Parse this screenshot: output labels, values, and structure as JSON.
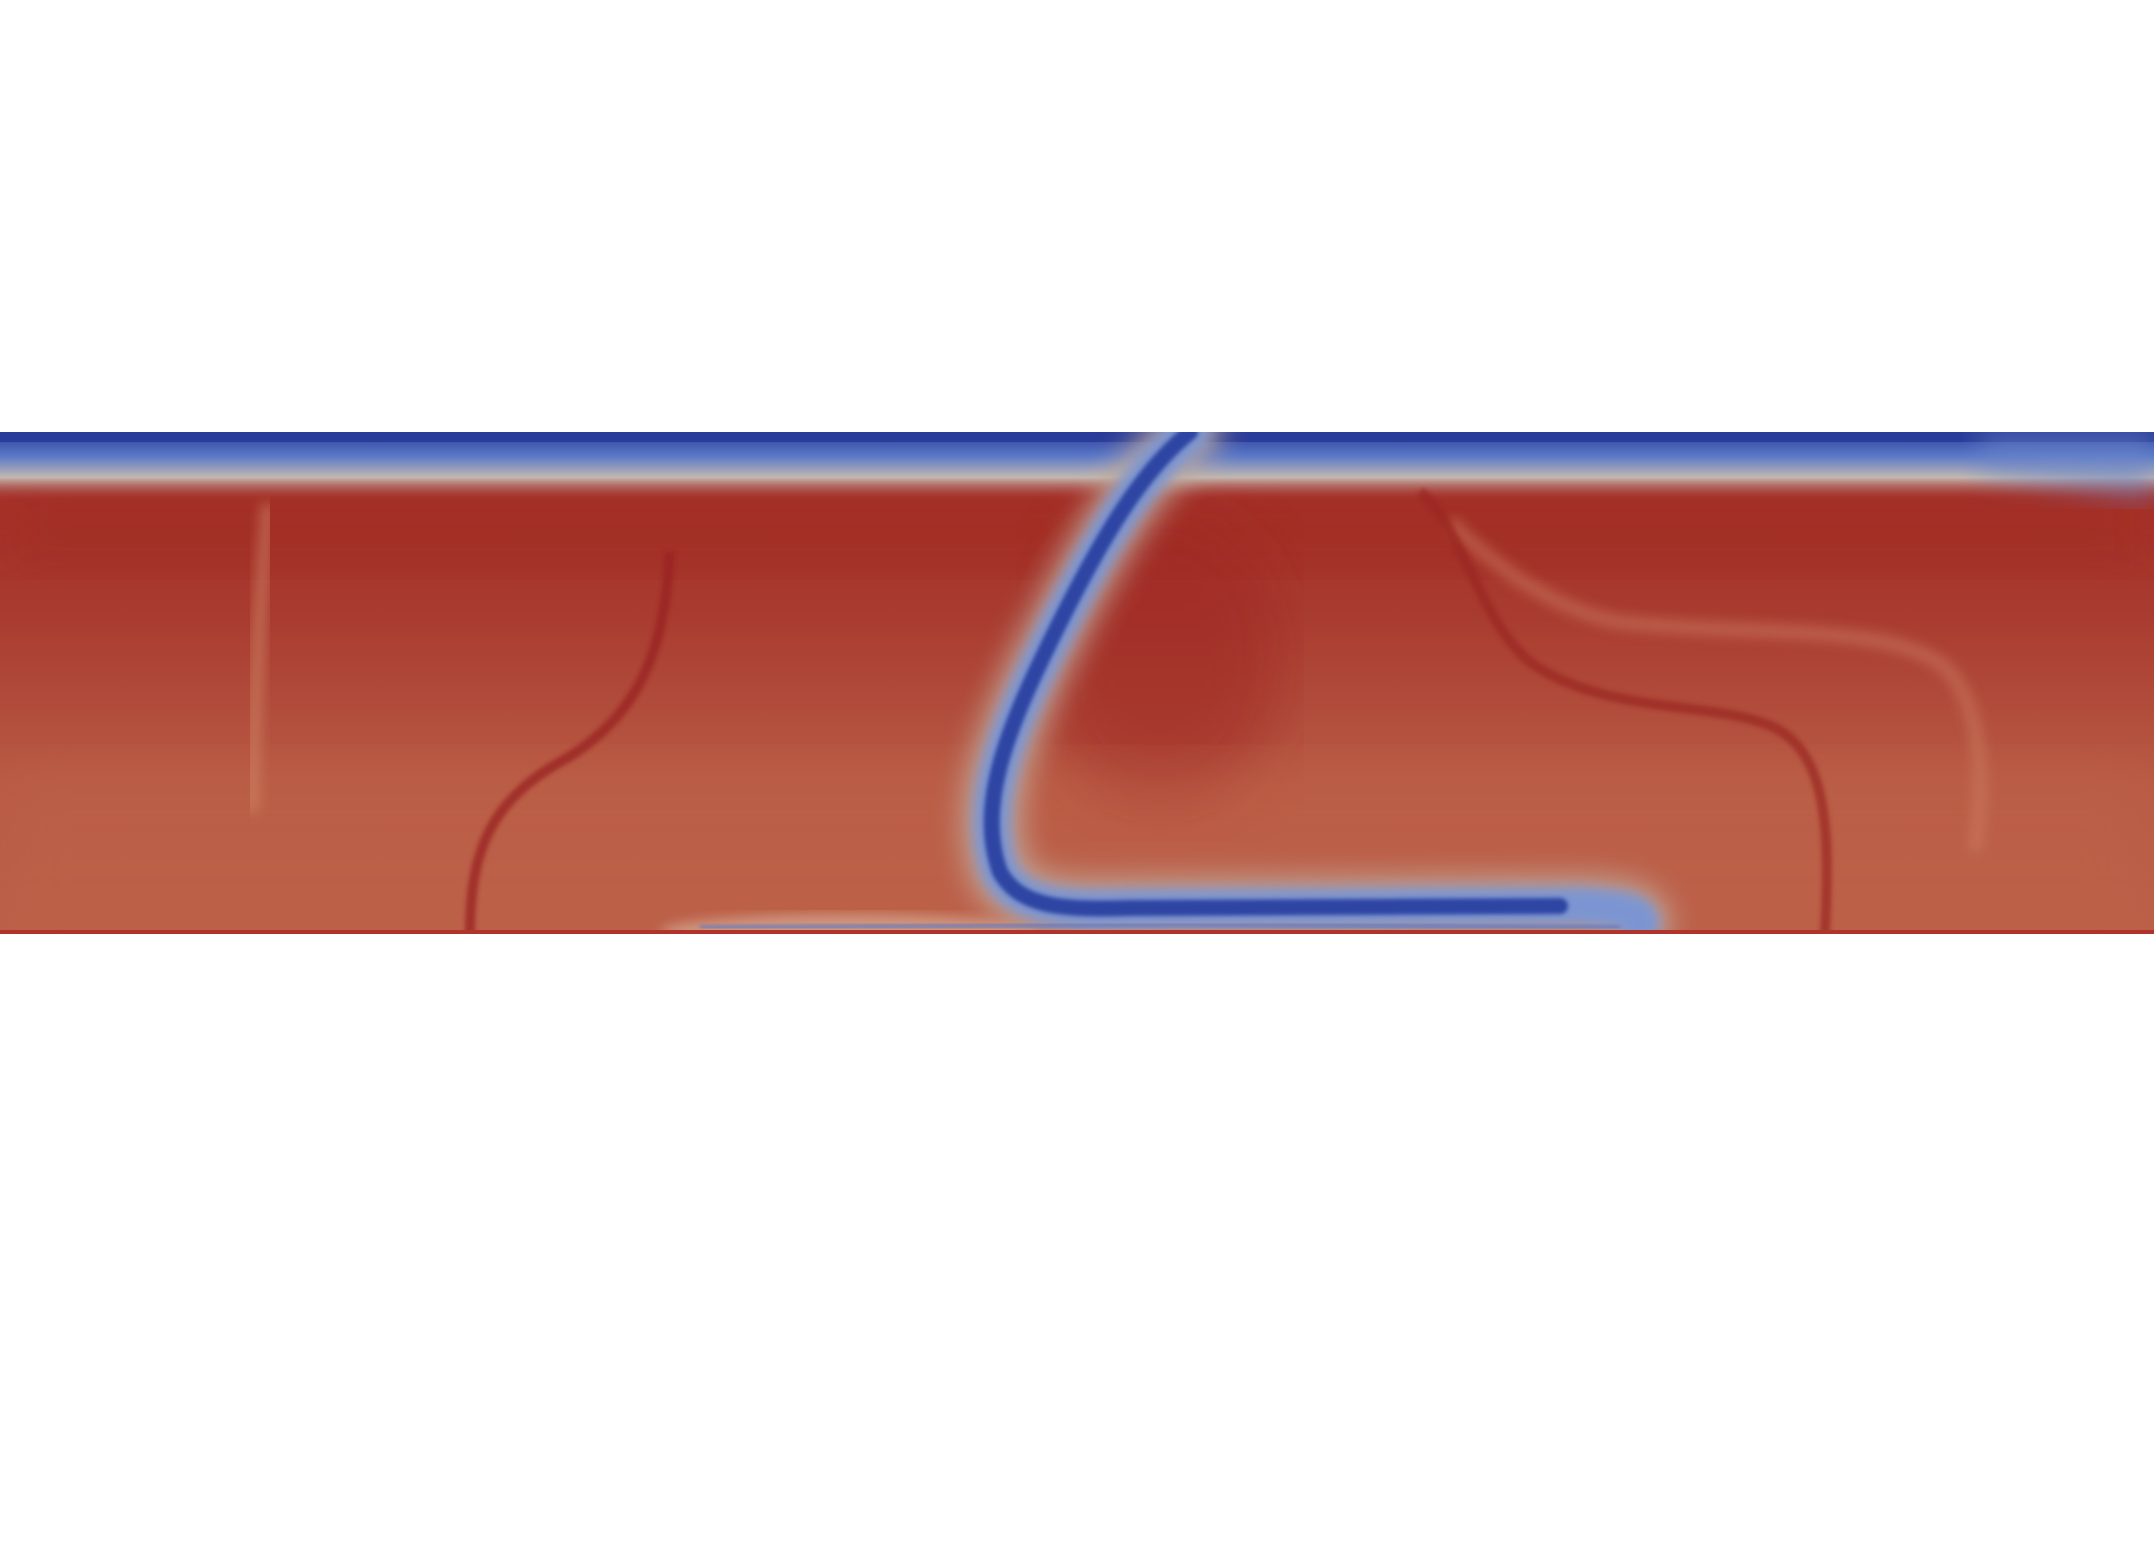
{
  "scene": {
    "background_color": "#ffffff",
    "colormap": {
      "name": "cool-to-warm",
      "low_color": "#2c3e9e",
      "mid_color": "#b9c2cf",
      "high_color": "#b53a2e",
      "field_red_dark": "#a02a24",
      "field_red_mid": "#b5483a",
      "field_red_light": "#bd5e48"
    }
  }
}
